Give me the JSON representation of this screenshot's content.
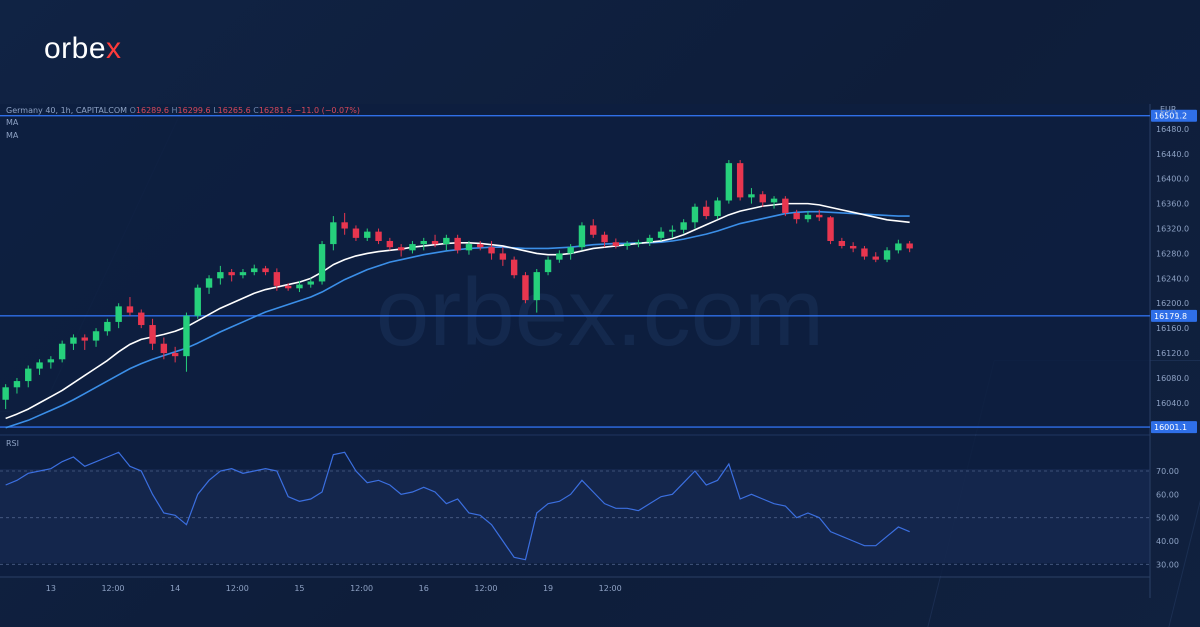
{
  "brand": {
    "name_main": "orbe",
    "name_accent": "x"
  },
  "colors": {
    "bg": "#0e1d3a",
    "up": "#26d07c",
    "down": "#e8364f",
    "ma_fast": "#ffffff",
    "ma_slow": "#3b8fe8",
    "rsi": "#3b6fe0",
    "hline": "#2f6fe8"
  },
  "header": {
    "symbol": "Germany 40, 1h, CAPITALCOM",
    "o_label": "O",
    "o_value": "16289.6",
    "h_label": "H",
    "h_value": "16299.6",
    "l_label": "L",
    "l_value": "16265.6",
    "c_label": "C",
    "c_value": "16281.6",
    "change": "−11.0 (−0.07%)",
    "ma1": "MA",
    "ma2": "MA"
  },
  "rsi_label": "RSI",
  "chart_data": {
    "type": "candlestick",
    "currency": "EUR",
    "price_axis": {
      "ylim": [
        15990,
        16520
      ],
      "ticks": [
        16480.0,
        16440.0,
        16400.0,
        16360.0,
        16320.0,
        16280.0,
        16240.0,
        16200.0,
        16160.0,
        16120.0,
        16080.0,
        16040.0
      ]
    },
    "horizontal_levels": [
      {
        "value": 16501.2,
        "label": "16501.2"
      },
      {
        "value": 16179.8,
        "label": "16179.8"
      },
      {
        "value": 16001.1,
        "label": "16001.1"
      }
    ],
    "x_ticks": [
      "13",
      "12:00",
      "14",
      "12:00",
      "15",
      "12:00",
      "16",
      "12:00",
      "19",
      "12:00"
    ],
    "x_tick_index": [
      4,
      9.5,
      15,
      20.5,
      26,
      31.5,
      37,
      42.5,
      48,
      53.5
    ],
    "candles": [
      [
        16045,
        16070,
        16030,
        16065
      ],
      [
        16065,
        16080,
        16055,
        16075
      ],
      [
        16075,
        16100,
        16065,
        16095
      ],
      [
        16095,
        16110,
        16085,
        16105
      ],
      [
        16105,
        16115,
        16095,
        16110
      ],
      [
        16110,
        16140,
        16105,
        16135
      ],
      [
        16135,
        16150,
        16125,
        16145
      ],
      [
        16145,
        16150,
        16125,
        16140
      ],
      [
        16140,
        16160,
        16130,
        16155
      ],
      [
        16155,
        16175,
        16148,
        16170
      ],
      [
        16170,
        16200,
        16160,
        16195
      ],
      [
        16195,
        16210,
        16180,
        16185
      ],
      [
        16185,
        16190,
        16160,
        16165
      ],
      [
        16165,
        16175,
        16125,
        16135
      ],
      [
        16135,
        16145,
        16110,
        16120
      ],
      [
        16120,
        16130,
        16105,
        16115
      ],
      [
        16115,
        16185,
        16090,
        16180
      ],
      [
        16180,
        16230,
        16175,
        16225
      ],
      [
        16225,
        16245,
        16215,
        16240
      ],
      [
        16240,
        16260,
        16230,
        16250
      ],
      [
        16250,
        16255,
        16235,
        16245
      ],
      [
        16245,
        16255,
        16240,
        16250
      ],
      [
        16250,
        16262,
        16245,
        16256
      ],
      [
        16256,
        16260,
        16245,
        16250
      ],
      [
        16250,
        16256,
        16220,
        16228
      ],
      [
        16228,
        16232,
        16220,
        16224
      ],
      [
        16224,
        16236,
        16218,
        16230
      ],
      [
        16230,
        16240,
        16225,
        16235
      ],
      [
        16235,
        16300,
        16230,
        16295
      ],
      [
        16295,
        16340,
        16285,
        16330
      ],
      [
        16330,
        16345,
        16310,
        16320
      ],
      [
        16320,
        16325,
        16300,
        16305
      ],
      [
        16305,
        16320,
        16300,
        16315
      ],
      [
        16315,
        16320,
        16295,
        16300
      ],
      [
        16300,
        16305,
        16285,
        16290
      ],
      [
        16290,
        16295,
        16275,
        16285
      ],
      [
        16285,
        16300,
        16280,
        16295
      ],
      [
        16295,
        16305,
        16285,
        16300
      ],
      [
        16300,
        16310,
        16290,
        16295
      ],
      [
        16295,
        16310,
        16285,
        16305
      ],
      [
        16305,
        16310,
        16280,
        16285
      ],
      [
        16285,
        16300,
        16278,
        16295
      ],
      [
        16295,
        16300,
        16285,
        16290
      ],
      [
        16290,
        16300,
        16270,
        16280
      ],
      [
        16280,
        16290,
        16260,
        16270
      ],
      [
        16270,
        16275,
        16240,
        16245
      ],
      [
        16245,
        16250,
        16200,
        16205
      ],
      [
        16205,
        16255,
        16185,
        16250
      ],
      [
        16250,
        16275,
        16245,
        16270
      ],
      [
        16270,
        16285,
        16265,
        16280
      ],
      [
        16280,
        16295,
        16270,
        16290
      ],
      [
        16290,
        16330,
        16285,
        16325
      ],
      [
        16325,
        16335,
        16305,
        16310
      ],
      [
        16310,
        16315,
        16290,
        16298
      ],
      [
        16298,
        16304,
        16288,
        16292
      ],
      [
        16292,
        16300,
        16286,
        16296
      ],
      [
        16296,
        16302,
        16290,
        16298
      ],
      [
        16298,
        16310,
        16292,
        16305
      ],
      [
        16305,
        16322,
        16300,
        16315
      ],
      [
        16315,
        16325,
        16305,
        16318
      ],
      [
        16318,
        16335,
        16312,
        16330
      ],
      [
        16330,
        16360,
        16320,
        16355
      ],
      [
        16355,
        16365,
        16335,
        16340
      ],
      [
        16340,
        16370,
        16335,
        16365
      ],
      [
        16365,
        16430,
        16360,
        16425
      ],
      [
        16425,
        16430,
        16365,
        16370
      ],
      [
        16370,
        16385,
        16360,
        16375
      ],
      [
        16375,
        16380,
        16355,
        16362
      ],
      [
        16362,
        16372,
        16352,
        16368
      ],
      [
        16368,
        16372,
        16340,
        16345
      ],
      [
        16345,
        16350,
        16328,
        16335
      ],
      [
        16335,
        16348,
        16330,
        16342
      ],
      [
        16342,
        16350,
        16332,
        16338
      ],
      [
        16338,
        16340,
        16295,
        16300
      ],
      [
        16300,
        16305,
        16288,
        16292
      ],
      [
        16292,
        16298,
        16282,
        16288
      ],
      [
        16288,
        16292,
        16270,
        16275
      ],
      [
        16275,
        16282,
        16266,
        16270
      ],
      [
        16270,
        16290,
        16266,
        16285
      ],
      [
        16285,
        16302,
        16280,
        16296
      ],
      [
        16296,
        16300,
        16282,
        16288
      ]
    ],
    "ma_fast": [
      16015,
      16022,
      16030,
      16040,
      16050,
      16060,
      16072,
      16084,
      16096,
      16108,
      16122,
      16134,
      16142,
      16146,
      16150,
      16155,
      16162,
      16172,
      16182,
      16192,
      16200,
      16208,
      16216,
      16222,
      16226,
      16230,
      16234,
      16240,
      16250,
      16262,
      16270,
      16276,
      16280,
      16283,
      16285,
      16287,
      16290,
      16292,
      16294,
      16296,
      16297,
      16297,
      16296,
      16294,
      16292,
      16288,
      16284,
      16280,
      16278,
      16278,
      16280,
      16284,
      16288,
      16290,
      16292,
      16294,
      16296,
      16298,
      16300,
      16304,
      16310,
      16318,
      16326,
      16334,
      16342,
      16348,
      16352,
      16356,
      16358,
      16360,
      16360,
      16360,
      16358,
      16354,
      16350,
      16346,
      16342,
      16338,
      16334,
      16332,
      16330
    ],
    "ma_slow": [
      16000,
      16006,
      16012,
      16020,
      16028,
      16036,
      16045,
      16055,
      16065,
      16075,
      16085,
      16095,
      16103,
      16110,
      16116,
      16122,
      16128,
      16136,
      16145,
      16154,
      16162,
      16170,
      16178,
      16186,
      16192,
      16198,
      16204,
      16210,
      16218,
      16228,
      16238,
      16246,
      16254,
      16260,
      16266,
      16270,
      16274,
      16278,
      16281,
      16284,
      16286,
      16288,
      16289,
      16290,
      16290,
      16289,
      16288,
      16288,
      16288,
      16289,
      16290,
      16292,
      16294,
      16295,
      16296,
      16296,
      16297,
      16297,
      16298,
      16300,
      16303,
      16307,
      16311,
      16316,
      16322,
      16328,
      16332,
      16336,
      16340,
      16344,
      16346,
      16347,
      16347,
      16346,
      16345,
      16344,
      16343,
      16342,
      16341,
      16340,
      16340
    ],
    "rsi": {
      "ylim": [
        25,
        85
      ],
      "ticks": [
        70.0,
        60.0,
        50.0,
        40.0,
        30.0
      ],
      "bands": [
        70,
        50,
        30
      ],
      "values": [
        64,
        66,
        69,
        70,
        71,
        74,
        76,
        72,
        74,
        76,
        78,
        72,
        70,
        60,
        52,
        51,
        47,
        60,
        66,
        70,
        71,
        69,
        70,
        71,
        70,
        59,
        57,
        58,
        61,
        77,
        78,
        70,
        65,
        66,
        64,
        60,
        61,
        63,
        61,
        56,
        58,
        52,
        51,
        47,
        40,
        33,
        32,
        52,
        56,
        57,
        60,
        66,
        61,
        56,
        54,
        54,
        53,
        56,
        59,
        60,
        65,
        70,
        64,
        66,
        73,
        58,
        60,
        58,
        56,
        55,
        50,
        52,
        50,
        44,
        42,
        40,
        38,
        38,
        42,
        46,
        44
      ]
    }
  }
}
